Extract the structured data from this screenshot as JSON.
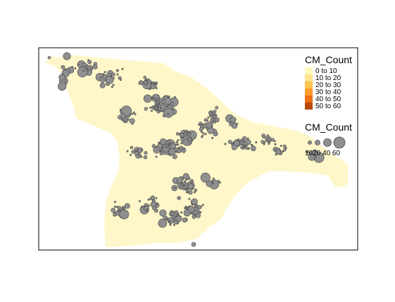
{
  "map": {
    "land_color": "#FFF7C9",
    "frame_color": "#000000",
    "bubble_fill": "#8F8F8F",
    "bubble_stroke": "#4A4A4A"
  },
  "fill_legend": {
    "title": "CM_Count",
    "items": [
      {
        "label": "0 to 10",
        "color": "#FFF7BC"
      },
      {
        "label": "10 to 20",
        "color": "#FEE391"
      },
      {
        "label": "20 to 30",
        "color": "#FEC44F"
      },
      {
        "label": "30 to 40",
        "color": "#FE9929"
      },
      {
        "label": "40 to 50",
        "color": "#EC7014"
      },
      {
        "label": "50 to 60",
        "color": "#B84A0B"
      }
    ]
  },
  "size_legend": {
    "title": "CM_Count",
    "bubble_label_text": "1020 40  60",
    "values": [
      10,
      20,
      40,
      60
    ]
  }
}
